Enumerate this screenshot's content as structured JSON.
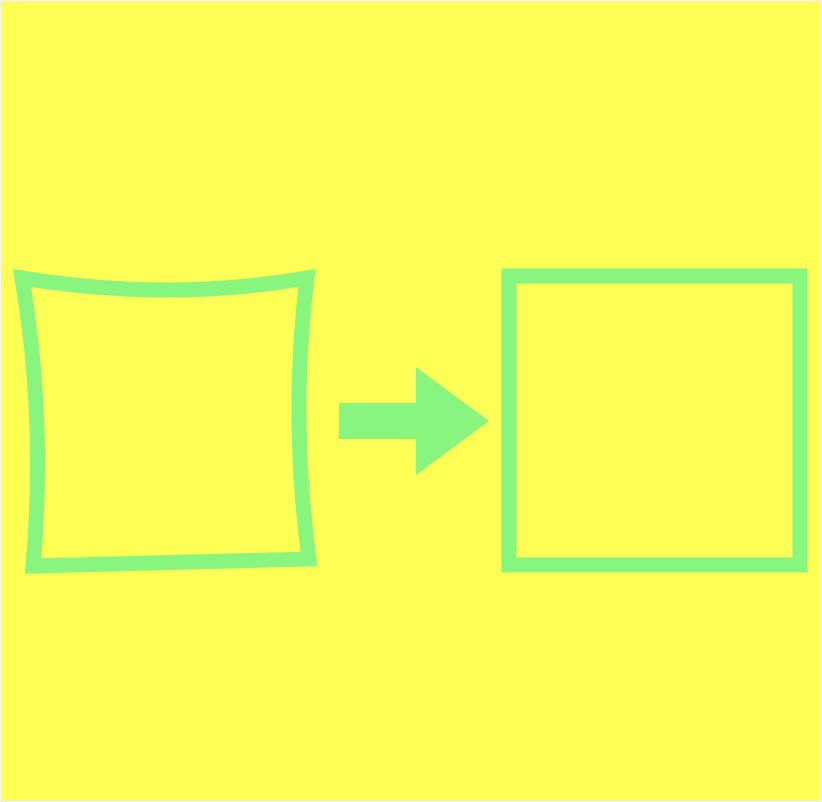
{
  "colors": {
    "background": "#ffff55",
    "stroke": "#88f57f",
    "border": "#e8e8e8"
  },
  "icons": {
    "source": "distorted-square-icon",
    "arrow": "right-arrow-icon",
    "target": "square-icon"
  }
}
